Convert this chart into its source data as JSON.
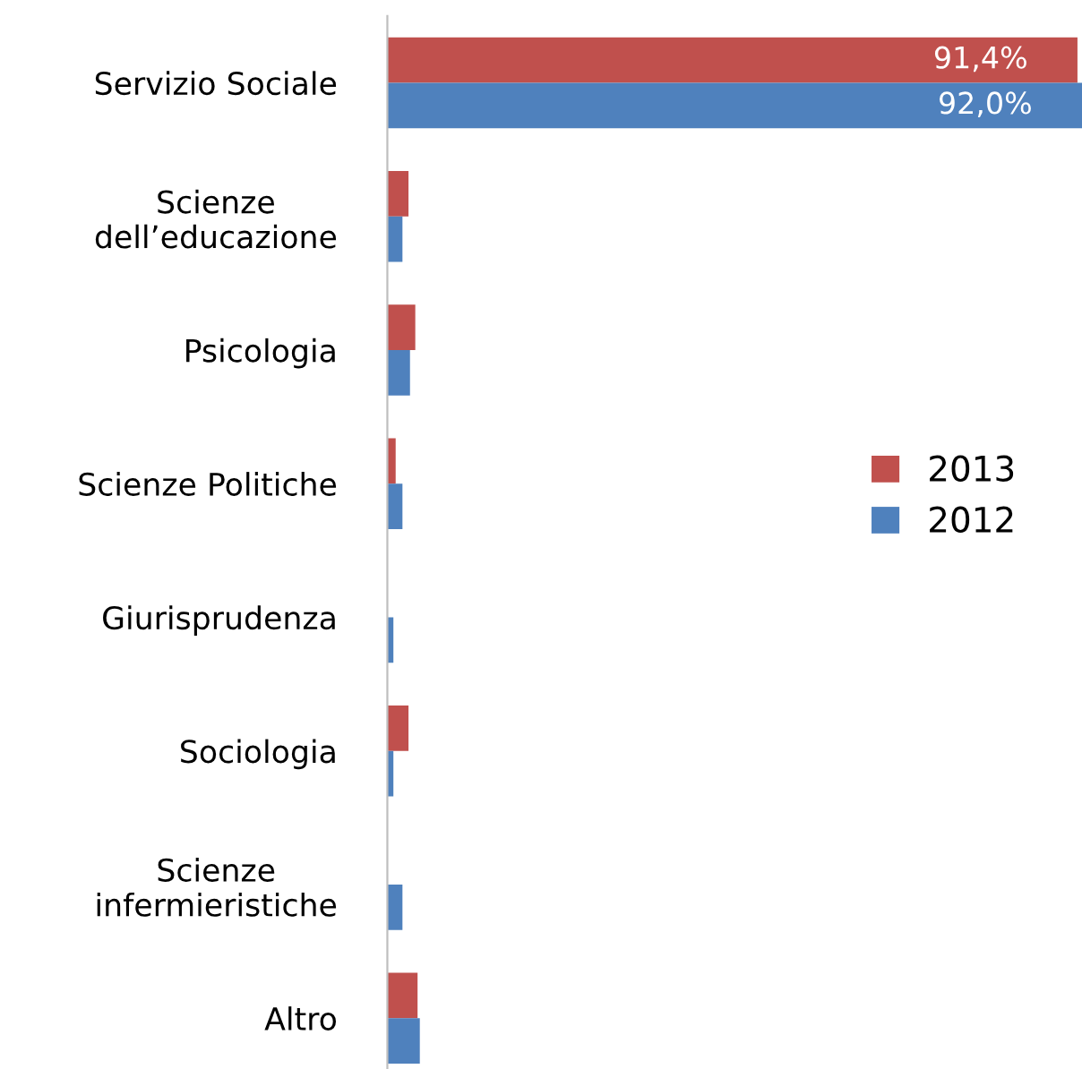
{
  "chart_data": {
    "type": "bar",
    "orientation": "horizontal",
    "categories": [
      "Servizio Sociale",
      "Scienze\ndell’educazione",
      "Psicologia",
      "Scienze Politiche",
      "Giurisprudenza",
      "Sociologia",
      "Scienze\ninfermieristiche",
      "Altro"
    ],
    "series": [
      {
        "name": "2013",
        "color": "#c0504d",
        "values": [
          91.4,
          2.8,
          3.7,
          1.1,
          0,
          2.8,
          0,
          4.0
        ],
        "value_labels": [
          "91,4%",
          null,
          null,
          null,
          null,
          null,
          null,
          null
        ]
      },
      {
        "name": "2012",
        "color": "#4f81bd",
        "values": [
          92.0,
          2.0,
          3.0,
          2.0,
          0.8,
          0.8,
          2.0,
          4.3
        ],
        "value_labels": [
          "92,0%",
          null,
          null,
          null,
          null,
          null,
          null,
          null
        ]
      }
    ],
    "xlim": [
      0,
      92.0
    ],
    "legend": "right",
    "grid": false
  }
}
